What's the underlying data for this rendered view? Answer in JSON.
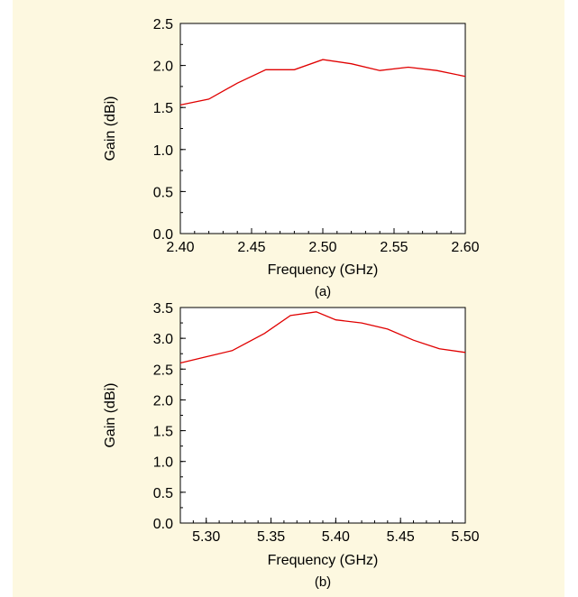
{
  "colors": {
    "panel_background": "#fdf8e0",
    "plot_background": "#ffffff",
    "series_line": "#e00000",
    "axis": "#000000"
  },
  "chart_data": [
    {
      "type": "line",
      "caption": "(a)",
      "xlabel": "Frequency (GHz)",
      "ylabel": "Gain (dBi)",
      "xlim": [
        2.4,
        2.6
      ],
      "ylim": [
        0.0,
        2.5
      ],
      "x_ticks": [
        "2.40",
        "2.45",
        "2.50",
        "2.55",
        "2.60"
      ],
      "y_ticks": [
        "0.0",
        "0.5",
        "1.0",
        "1.5",
        "2.0",
        "2.5"
      ],
      "grid": false,
      "series": [
        {
          "x": [
            2.4,
            2.42,
            2.44,
            2.46,
            2.48,
            2.5,
            2.52,
            2.54,
            2.56,
            2.58,
            2.6
          ],
          "values": [
            1.53,
            1.6,
            1.79,
            1.95,
            1.95,
            2.07,
            2.02,
            1.94,
            1.98,
            1.94,
            1.87
          ]
        }
      ]
    },
    {
      "type": "line",
      "caption": "(b)",
      "xlabel": "Frequency (GHz)",
      "ylabel": "Gain (dBi)",
      "xlim": [
        5.28,
        5.5
      ],
      "ylim": [
        0.0,
        3.5
      ],
      "x_ticks": [
        "5.30",
        "5.35",
        "5.40",
        "5.45",
        "5.50"
      ],
      "y_ticks": [
        "0.0",
        "0.5",
        "1.0",
        "1.5",
        "2.0",
        "2.5",
        "3.0",
        "3.5"
      ],
      "grid": false,
      "series": [
        {
          "x": [
            5.28,
            5.3,
            5.32,
            5.345,
            5.365,
            5.385,
            5.4,
            5.42,
            5.44,
            5.46,
            5.48,
            5.5
          ],
          "values": [
            2.6,
            2.7,
            2.8,
            3.08,
            3.37,
            3.43,
            3.3,
            3.25,
            3.15,
            2.97,
            2.83,
            2.77
          ]
        }
      ]
    }
  ]
}
